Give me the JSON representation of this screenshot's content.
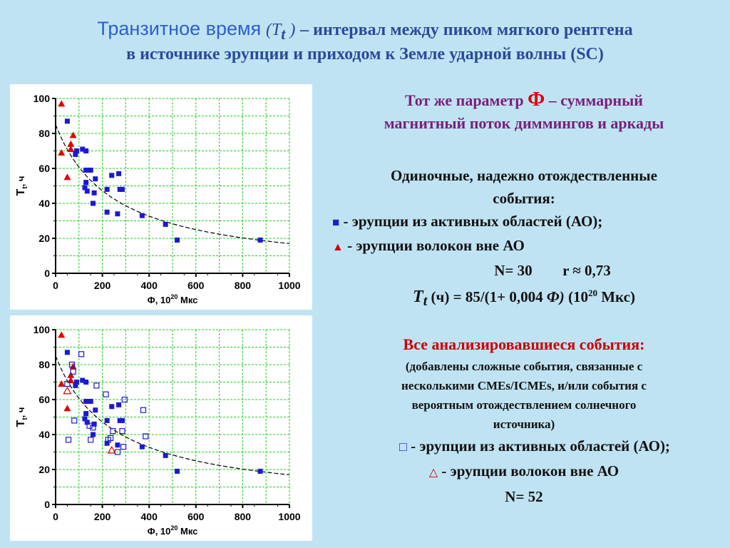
{
  "title": {
    "line1_main": "Транзитное время",
    "line1_paren_open": "(",
    "line1_symbol": "T",
    "line1_subscript": "t",
    "line1_paren_close": ")",
    "line1_rest": "– интервал между пиком мягкого рентгена",
    "line2": "в источнике эрупции и приходом к Земле ударной волны (SC)"
  },
  "right_text": {
    "param_line1_a": "Тот же параметр",
    "param_phi": "Ф",
    "param_line1_b": "– суммарный",
    "param_line2": "магнитный поток диммингов и аркады",
    "single_events_1": "Одиночные, надежно отождествленные",
    "single_events_2": "события:",
    "legend_ao": "- эрупции из активных областей (АО);",
    "legend_filament": "- эрупции волокон вне АО",
    "n_label": "N= 30",
    "r_label": "r ≈ 0,73",
    "formula_T": "T",
    "formula_t": "t",
    "formula_body": "(ч) = 85/(1+ 0,004",
    "formula_phi": "Ф)",
    "formula_units_a": "(10",
    "formula_units_exp": "20",
    "formula_units_b": "Мкс)",
    "all_events_head": "Все анализировавшиеся события:",
    "all_events_note_1": "(добавлены сложные события, связанные с",
    "all_events_note_2": "несколькими CMEs/ICMEs, и/или события с",
    "all_events_note_3": "вероятным отождествлением солнечного",
    "all_events_note_4": "источника)",
    "legend_ao_open": "- эрупции из активных областей (АО);",
    "legend_filament_open": "- эрупции волокон вне АО",
    "n_all": "N= 52"
  },
  "colors": {
    "background": "#bfe3f3",
    "ao_marker": "#1a1ad0",
    "filament_marker": "#e00000",
    "grid": "#22cc22",
    "fit_curve": "#000000"
  },
  "chart_data": [
    {
      "type": "scatter",
      "xlabel_main": "Ф, 10",
      "xlabel_exp": "20",
      "xlabel_unit": " Мкс",
      "ylabel_main": "T",
      "ylabel_sub": "t",
      "ylabel_unit": ", ч",
      "xlim": [
        0,
        1000
      ],
      "ylim": [
        0,
        100
      ],
      "xticks": [
        0,
        200,
        400,
        600,
        800,
        1000
      ],
      "yticks": [
        0,
        20,
        40,
        60,
        80,
        100
      ],
      "grid": true,
      "fit": {
        "formula": "85/(1+0.004*x)",
        "x_start": 0,
        "x_end": 1000
      },
      "series": [
        {
          "marker": "square-filled",
          "color": "#1a1ad0",
          "points": [
            [
              50,
              87
            ],
            [
              85,
              68
            ],
            [
              90,
              70
            ],
            [
              115,
              71
            ],
            [
              130,
              70
            ],
            [
              125,
              49
            ],
            [
              130,
              52
            ],
            [
              130,
              59
            ],
            [
              135,
              47
            ],
            [
              150,
              59
            ],
            [
              160,
              40
            ],
            [
              165,
              46
            ],
            [
              170,
              54
            ],
            [
              220,
              48
            ],
            [
              220,
              35
            ],
            [
              240,
              56
            ],
            [
              265,
              34
            ],
            [
              270,
              57
            ],
            [
              275,
              48
            ],
            [
              285,
              48
            ],
            [
              370,
              33
            ],
            [
              470,
              28
            ],
            [
              520,
              19
            ],
            [
              875,
              19
            ]
          ]
        },
        {
          "marker": "triangle-filled",
          "color": "#e00000",
          "points": [
            [
              25,
              97
            ],
            [
              25,
              69
            ],
            [
              50,
              55
            ],
            [
              65,
              74
            ],
            [
              65,
              71
            ],
            [
              75,
              79
            ]
          ]
        }
      ]
    },
    {
      "type": "scatter",
      "xlabel_main": "Ф, 10",
      "xlabel_exp": "20",
      "xlabel_unit": " Мкс",
      "ylabel_main": "T",
      "ylabel_sub": "t",
      "ylabel_unit": ", ч",
      "xlim": [
        0,
        1000
      ],
      "ylim": [
        0,
        100
      ],
      "xticks": [
        0,
        200,
        400,
        600,
        800,
        1000
      ],
      "yticks": [
        0,
        20,
        40,
        60,
        80,
        100
      ],
      "grid": true,
      "fit": {
        "formula": "85/(1+0.004*x)",
        "x_start": 0,
        "x_end": 1000
      },
      "series": [
        {
          "marker": "square-filled",
          "color": "#1a1ad0",
          "points": [
            [
              50,
              87
            ],
            [
              85,
              68
            ],
            [
              90,
              70
            ],
            [
              115,
              71
            ],
            [
              130,
              70
            ],
            [
              125,
              49
            ],
            [
              130,
              52
            ],
            [
              130,
              59
            ],
            [
              135,
              47
            ],
            [
              150,
              59
            ],
            [
              160,
              40
            ],
            [
              165,
              46
            ],
            [
              170,
              54
            ],
            [
              220,
              48
            ],
            [
              220,
              35
            ],
            [
              240,
              56
            ],
            [
              265,
              34
            ],
            [
              270,
              57
            ],
            [
              275,
              48
            ],
            [
              285,
              48
            ],
            [
              370,
              33
            ],
            [
              470,
              28
            ],
            [
              520,
              19
            ],
            [
              875,
              19
            ]
          ]
        },
        {
          "marker": "triangle-filled",
          "color": "#e00000",
          "points": [
            [
              25,
              97
            ],
            [
              25,
              69
            ],
            [
              50,
              55
            ],
            [
              65,
              74
            ],
            [
              65,
              71
            ],
            [
              75,
              79
            ]
          ]
        },
        {
          "marker": "square-open",
          "color": "#1a1ad0",
          "points": [
            [
              50,
              69
            ],
            [
              55,
              37
            ],
            [
              70,
              80
            ],
            [
              75,
              76
            ],
            [
              80,
              48
            ],
            [
              110,
              86
            ],
            [
              145,
              45
            ],
            [
              150,
              37
            ],
            [
              160,
              44
            ],
            [
              175,
              68
            ],
            [
              215,
              63
            ],
            [
              225,
              37
            ],
            [
              235,
              38
            ],
            [
              245,
              42
            ],
            [
              265,
              30
            ],
            [
              285,
              42
            ],
            [
              290,
              33
            ],
            [
              295,
              60
            ],
            [
              375,
              54
            ],
            [
              385,
              39
            ]
          ]
        },
        {
          "marker": "triangle-open",
          "color": "#e00000",
          "points": [
            [
              50,
              65
            ],
            [
              240,
              31
            ]
          ]
        }
      ]
    }
  ]
}
